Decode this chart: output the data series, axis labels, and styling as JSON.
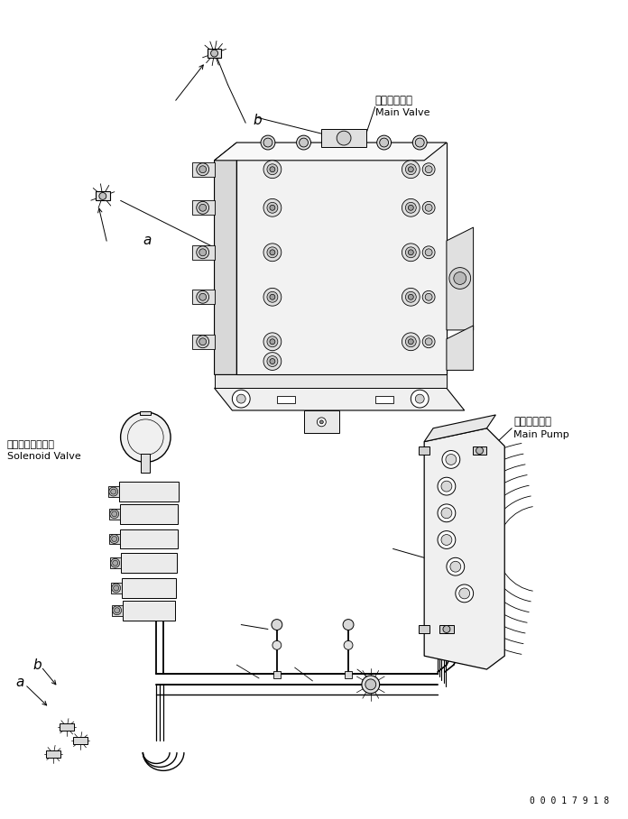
{
  "background_color": "#ffffff",
  "line_color": "#000000",
  "part_number": "0 0 0 1 7 9 1 8",
  "labels": {
    "main_valve_jp": "メインバルブ",
    "main_valve_en": "Main Valve",
    "main_pump_jp": "メインポンプ",
    "main_pump_en": "Main Pump",
    "solenoid_valve_jp": "ソレノイドバルブ",
    "solenoid_valve_en": "Solenoid Valve",
    "label_a": "a",
    "label_b": "b"
  },
  "figsize": [
    6.96,
    9.08
  ],
  "dpi": 100
}
